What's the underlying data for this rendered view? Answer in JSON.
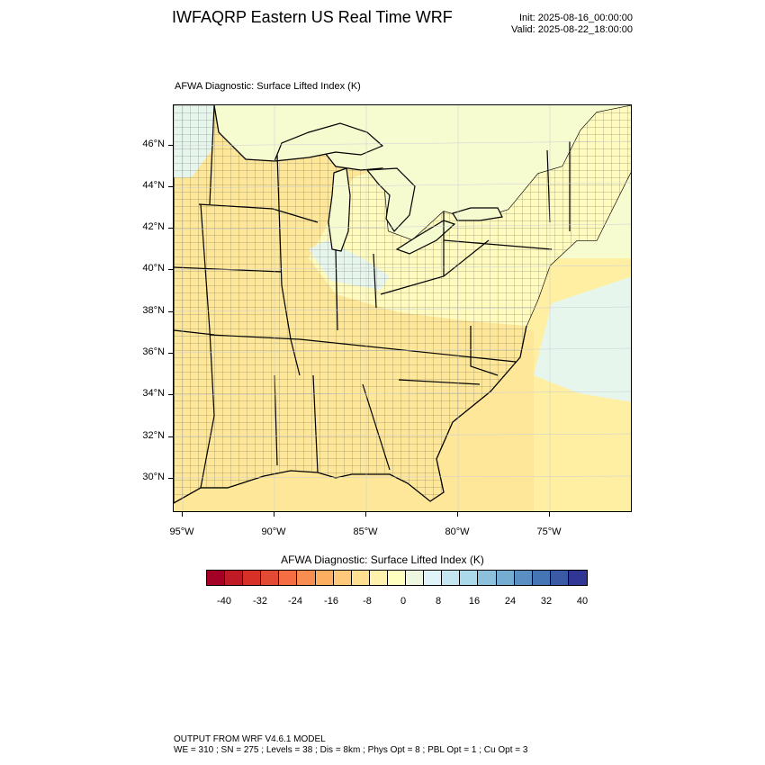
{
  "header": {
    "title": "IWFAQRP Eastern US Real Time WRF",
    "init": "Init: 2025-08-16_00:00:00",
    "valid": "Valid: 2025-08-22_18:00:00"
  },
  "map": {
    "subtitle": "AFWA Diagnostic: Surface Lifted Index   (K)",
    "lat_labels": [
      "46°N",
      "44°N",
      "42°N",
      "40°N",
      "38°N",
      "36°N",
      "34°N",
      "32°N",
      "30°N"
    ],
    "lon_labels": [
      "95°W",
      "90°W",
      "85°W",
      "80°W",
      "75°W"
    ],
    "colors": {
      "land_warm": "#fee799",
      "land_mild": "#fffbbf",
      "neutral": "#f7fcd0",
      "slightly_stable": "#e7f6ec",
      "lake_water": "#f5fbcf",
      "ocean": "#ffefa3"
    }
  },
  "colorbar": {
    "title": "AFWA Diagnostic: Surface Lifted Index  (K)",
    "labels": [
      "-40",
      "-32",
      "-24",
      "-16",
      "-8",
      "0",
      "8",
      "16",
      "24",
      "32",
      "40"
    ],
    "colors": [
      "#a50026",
      "#c01a27",
      "#d73027",
      "#e34a33",
      "#f46d43",
      "#f88d52",
      "#fdae61",
      "#fec97a",
      "#fee090",
      "#fff2ac",
      "#ffffbf",
      "#eef8e0",
      "#e0f3f8",
      "#c4e6f0",
      "#abd9e9",
      "#8cc0dd",
      "#74add1",
      "#5b8fc3",
      "#4575b4",
      "#3a5aa6",
      "#313695"
    ]
  },
  "footer": {
    "line1": "OUTPUT FROM WRF V4.6.1 MODEL",
    "line2": "WE = 310 ; SN = 275 ; Levels = 38 ; Dis = 8km ; Phys Opt = 8 ; PBL Opt = 1 ; Cu Opt = 3"
  }
}
